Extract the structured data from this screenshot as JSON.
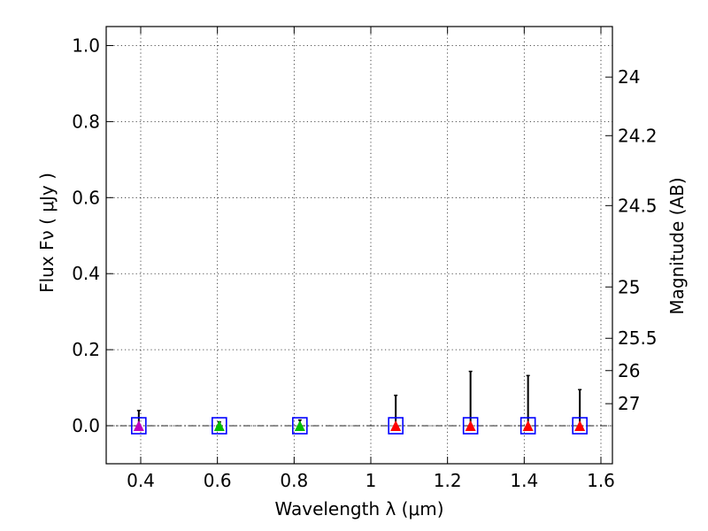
{
  "chart_data": {
    "type": "scatter",
    "xlabel": "Wavelength  λ (μm)",
    "ylabel": "Flux  Fν  ( μJy )",
    "y2label": "Magnitude (AB)",
    "xlim": [
      0.31,
      1.63
    ],
    "ylim": [
      -0.1,
      1.05
    ],
    "xticks": [
      0.4,
      0.6,
      0.8,
      1.0,
      1.2,
      1.4,
      1.6
    ],
    "xtick_labels": [
      "0.4",
      "0.6",
      "0.8",
      "1",
      "1.2",
      "1.4",
      "1.6"
    ],
    "yticks": [
      0.0,
      0.2,
      0.4,
      0.6,
      0.8,
      1.0
    ],
    "ytick_labels": [
      "0.0",
      "0.2",
      "0.4",
      "0.6",
      "0.8",
      "1.0"
    ],
    "y2ticks": [
      {
        "label": "24",
        "flux": 0.917
      },
      {
        "label": "24.2",
        "flux": 0.763
      },
      {
        "label": "24.5",
        "flux": 0.579
      },
      {
        "label": "25",
        "flux": 0.365
      },
      {
        "label": "25.5",
        "flux": 0.23
      },
      {
        "label": "26",
        "flux": 0.145
      },
      {
        "label": "27",
        "flux": 0.058
      }
    ],
    "grid": true,
    "zero_line": true,
    "points": [
      {
        "x": 0.395,
        "y": 0.0,
        "yerr_upper": 0.04,
        "color": "#bf00bf"
      },
      {
        "x": 0.605,
        "y": 0.0,
        "yerr_upper": 0.01,
        "color": "#00bf00"
      },
      {
        "x": 0.815,
        "y": 0.0,
        "yerr_upper": 0.015,
        "color": "#00bf00"
      },
      {
        "x": 1.065,
        "y": 0.0,
        "yerr_upper": 0.08,
        "color": "#ff0000"
      },
      {
        "x": 1.26,
        "y": 0.0,
        "yerr_upper": 0.143,
        "color": "#ff0000"
      },
      {
        "x": 1.41,
        "y": 0.0,
        "yerr_upper": 0.132,
        "color": "#ff0000"
      },
      {
        "x": 1.545,
        "y": 0.0,
        "yerr_upper": 0.095,
        "color": "#ff0000"
      }
    ],
    "model_box_color": "#0000ff"
  }
}
